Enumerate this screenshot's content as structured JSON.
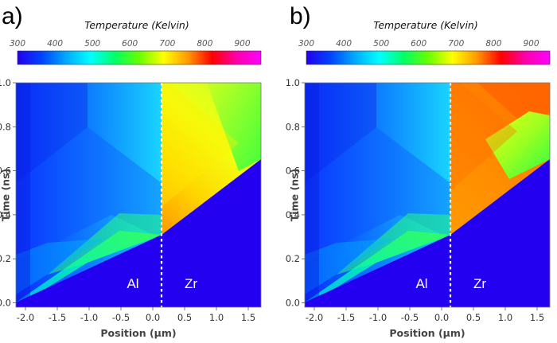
{
  "panels": [
    {
      "letter": "a)"
    },
    {
      "letter": "b)"
    }
  ],
  "colorbar": {
    "title": "Temperature (Kelvin)",
    "range": [
      300,
      950
    ],
    "ticks": [
      "300",
      "400",
      "500",
      "600",
      "700",
      "800",
      "900"
    ],
    "stops": [
      "#2200ee",
      "#0044ff",
      "#00aaff",
      "#00ffff",
      "#00ff66",
      "#66ff00",
      "#ffff00",
      "#ff9900",
      "#ff0000",
      "#ff00aa",
      "#ff00ff"
    ]
  },
  "chart_data": [
    {
      "type": "heatmap",
      "panel": "a)",
      "xlabel": "Position (μm)",
      "ylabel": "Time (ns)",
      "xlim": [
        -2.15,
        1.7
      ],
      "ylim": [
        -0.02,
        1.0
      ],
      "xticks": [
        -2.0,
        -1.5,
        -1.0,
        -0.5,
        0.0,
        0.5,
        1.0,
        1.5
      ],
      "yticks": [
        0.0,
        0.2,
        0.4,
        0.6,
        0.8,
        1.0
      ],
      "interface_x": 0.0,
      "region_labels": [
        {
          "text": "Al",
          "x": -0.45,
          "y": 0.1
        },
        {
          "text": "Zr",
          "x": 0.4,
          "y": 0.1
        }
      ],
      "colorscale_range_K": [
        300,
        950
      ],
      "description_of_field": "Al side (x<0) mostly 350-600 K, Zr side (x>0) 600-750 K; unshocked region below wave front ~300 K"
    },
    {
      "type": "heatmap",
      "panel": "b)",
      "xlabel": "Position (μm)",
      "ylabel": "Time (ns)",
      "xlim": [
        -2.15,
        1.7
      ],
      "ylim": [
        -0.02,
        1.0
      ],
      "xticks": [
        -2.0,
        -1.5,
        -1.0,
        -0.5,
        0.0,
        0.5,
        1.0,
        1.5
      ],
      "yticks": [
        0.0,
        0.2,
        0.4,
        0.6,
        0.8,
        1.0
      ],
      "interface_x": 0.0,
      "region_labels": [
        {
          "text": "Al",
          "x": -0.45,
          "y": 0.1
        },
        {
          "text": "Zr",
          "x": 0.4,
          "y": 0.1
        }
      ],
      "colorscale_range_K": [
        300,
        950
      ],
      "description_of_field": "Al side mostly 350-600 K, Zr side hotter 700-800 K; unshocked region ~300 K"
    }
  ]
}
